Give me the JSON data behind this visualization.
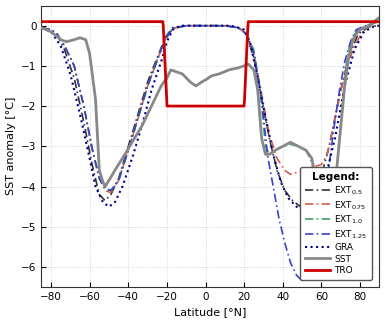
{
  "title": "",
  "xlabel": "Latitude [°N]",
  "ylabel": "SST anomaly [°C]",
  "xlim": [
    -85,
    90
  ],
  "ylim": [
    -6.5,
    0.5
  ],
  "yticks": [
    0,
    -1,
    -2,
    -3,
    -4,
    -5,
    -6
  ],
  "xticks": [
    -80,
    -60,
    -40,
    -20,
    0,
    20,
    40,
    60,
    80
  ],
  "legend_title": "Legend:",
  "background_color": "#ffffff",
  "grid_color": "#cccccc",
  "colors": {
    "SST": "#888888",
    "TRO": "#cc0000",
    "GRA": "#00008b",
    "EXT_05": "#333333",
    "EXT_075": "#d06050",
    "EXT_10": "#40a060",
    "EXT_125": "#3344cc"
  }
}
